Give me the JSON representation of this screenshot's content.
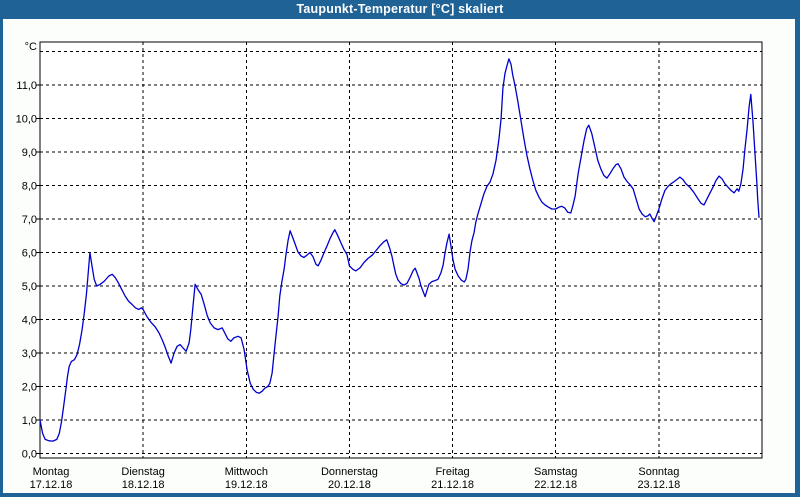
{
  "window": {
    "title": "Taupunkt-Temperatur [°C] skaliert"
  },
  "colors": {
    "frame_blue": "#1e6296",
    "background": "#fcfefc",
    "plot_background": "#ffffff",
    "grid_color": "#000000",
    "text_color": "#000000",
    "line_color": "#0000cd"
  },
  "chart_data": {
    "type": "line",
    "title": "Taupunkt-Temperatur [°C] skaliert",
    "y_unit_label": "°C",
    "grid": "dashed",
    "legend": "none",
    "y_axis": {
      "min": 0,
      "max_labeled": 11,
      "max_gridline": 12,
      "tick_step": 1,
      "tick_labels": [
        "0,0",
        "1,0",
        "2,0",
        "3,0",
        "4,0",
        "5,0",
        "6,0",
        "7,0",
        "8,0",
        "9,0",
        "10,0",
        "11,0"
      ],
      "decimal_separator": ","
    },
    "x_axis": {
      "hours_total": 168,
      "gridline_every_hours": 24,
      "days": [
        {
          "weekday": "Montag",
          "date": "17.12.18"
        },
        {
          "weekday": "Dienstag",
          "date": "18.12.18"
        },
        {
          "weekday": "Mittwoch",
          "date": "19.12.18"
        },
        {
          "weekday": "Donnerstag",
          "date": "20.12.18"
        },
        {
          "weekday": "Freitag",
          "date": "21.12.18"
        },
        {
          "weekday": "Samstag",
          "date": "22.12.18"
        },
        {
          "weekday": "Sonntag",
          "date": "23.12.18"
        }
      ]
    },
    "series": [
      {
        "name": "Taupunkt-Temperatur",
        "color": "#0000cd",
        "points": [
          [
            0,
            1.0
          ],
          [
            0.6,
            0.6
          ],
          [
            1.2,
            0.42
          ],
          [
            2.1,
            0.38
          ],
          [
            3,
            0.37
          ],
          [
            3.9,
            0.42
          ],
          [
            4.5,
            0.6
          ],
          [
            5,
            0.95
          ],
          [
            5.5,
            1.4
          ],
          [
            6,
            1.9
          ],
          [
            6.4,
            2.3
          ],
          [
            6.8,
            2.6
          ],
          [
            7.3,
            2.75
          ],
          [
            8,
            2.8
          ],
          [
            8.6,
            2.95
          ],
          [
            9.2,
            3.25
          ],
          [
            9.8,
            3.7
          ],
          [
            10.3,
            4.2
          ],
          [
            10.8,
            4.75
          ],
          [
            11.2,
            5.35
          ],
          [
            11.6,
            6.0
          ],
          [
            12.1,
            5.6
          ],
          [
            12.6,
            5.2
          ],
          [
            13.2,
            5.0
          ],
          [
            14,
            5.05
          ],
          [
            15,
            5.15
          ],
          [
            16,
            5.3
          ],
          [
            16.8,
            5.35
          ],
          [
            17.5,
            5.25
          ],
          [
            18.2,
            5.1
          ],
          [
            19,
            4.9
          ],
          [
            19.8,
            4.7
          ],
          [
            20.6,
            4.55
          ],
          [
            21.4,
            4.45
          ],
          [
            22.2,
            4.35
          ],
          [
            23,
            4.3
          ],
          [
            23.6,
            4.35
          ],
          [
            24,
            4.3
          ],
          [
            24.9,
            4.08
          ],
          [
            25.8,
            3.92
          ],
          [
            26.8,
            3.78
          ],
          [
            27.7,
            3.6
          ],
          [
            28.4,
            3.4
          ],
          [
            29.1,
            3.18
          ],
          [
            29.8,
            2.92
          ],
          [
            30.5,
            2.7
          ],
          [
            31.2,
            3.0
          ],
          [
            31.9,
            3.2
          ],
          [
            32.6,
            3.25
          ],
          [
            33.3,
            3.15
          ],
          [
            34,
            3.05
          ],
          [
            34.7,
            3.3
          ],
          [
            35.1,
            3.7
          ],
          [
            35.6,
            4.4
          ],
          [
            36.1,
            5.05
          ],
          [
            36.8,
            4.88
          ],
          [
            37.5,
            4.75
          ],
          [
            38.2,
            4.45
          ],
          [
            38.9,
            4.12
          ],
          [
            39.6,
            3.9
          ],
          [
            40.5,
            3.75
          ],
          [
            41.4,
            3.7
          ],
          [
            42.4,
            3.75
          ],
          [
            43,
            3.6
          ],
          [
            43.7,
            3.42
          ],
          [
            44.4,
            3.35
          ],
          [
            45.1,
            3.45
          ],
          [
            46.1,
            3.5
          ],
          [
            46.8,
            3.45
          ],
          [
            47.5,
            3.1
          ],
          [
            48.2,
            2.5
          ],
          [
            48.9,
            2.1
          ],
          [
            49.6,
            1.92
          ],
          [
            50.3,
            1.83
          ],
          [
            51,
            1.8
          ],
          [
            51.7,
            1.86
          ],
          [
            52.3,
            1.95
          ],
          [
            53,
            2.0
          ],
          [
            53.5,
            2.1
          ],
          [
            54,
            2.4
          ],
          [
            54.4,
            2.9
          ],
          [
            54.9,
            3.5
          ],
          [
            55.4,
            4.1
          ],
          [
            55.8,
            4.7
          ],
          [
            56.3,
            5.15
          ],
          [
            56.8,
            5.5
          ],
          [
            57.2,
            5.9
          ],
          [
            57.7,
            6.35
          ],
          [
            58.2,
            6.65
          ],
          [
            58.6,
            6.52
          ],
          [
            59.3,
            6.28
          ],
          [
            60,
            6.02
          ],
          [
            60.7,
            5.9
          ],
          [
            61.4,
            5.85
          ],
          [
            62.1,
            5.92
          ],
          [
            62.8,
            6.0
          ],
          [
            63.5,
            5.88
          ],
          [
            64.2,
            5.65
          ],
          [
            64.7,
            5.6
          ],
          [
            65.4,
            5.78
          ],
          [
            66.1,
            6.0
          ],
          [
            66.8,
            6.2
          ],
          [
            67.5,
            6.42
          ],
          [
            68.2,
            6.6
          ],
          [
            68.6,
            6.68
          ],
          [
            69.3,
            6.5
          ],
          [
            70,
            6.3
          ],
          [
            70.7,
            6.1
          ],
          [
            71.4,
            5.95
          ],
          [
            72,
            5.6
          ],
          [
            72.8,
            5.5
          ],
          [
            73.5,
            5.45
          ],
          [
            74.5,
            5.55
          ],
          [
            75.4,
            5.7
          ],
          [
            76.3,
            5.82
          ],
          [
            77.3,
            5.92
          ],
          [
            78.2,
            6.06
          ],
          [
            79.1,
            6.2
          ],
          [
            80,
            6.32
          ],
          [
            80.7,
            6.38
          ],
          [
            81.4,
            6.12
          ],
          [
            81.9,
            5.88
          ],
          [
            82.4,
            5.58
          ],
          [
            82.8,
            5.35
          ],
          [
            83.3,
            5.18
          ],
          [
            84,
            5.07
          ],
          [
            84.7,
            5.03
          ],
          [
            85.4,
            5.08
          ],
          [
            86.1,
            5.25
          ],
          [
            86.8,
            5.45
          ],
          [
            87.3,
            5.53
          ],
          [
            87.7,
            5.4
          ],
          [
            88.2,
            5.22
          ],
          [
            88.6,
            5.02
          ],
          [
            89.1,
            4.85
          ],
          [
            89.6,
            4.68
          ],
          [
            90,
            4.85
          ],
          [
            90.5,
            5.05
          ],
          [
            91.2,
            5.13
          ],
          [
            91.9,
            5.16
          ],
          [
            92.6,
            5.2
          ],
          [
            93.3,
            5.4
          ],
          [
            93.8,
            5.62
          ],
          [
            94.2,
            5.95
          ],
          [
            94.7,
            6.3
          ],
          [
            95.2,
            6.55
          ],
          [
            95.6,
            6.2
          ],
          [
            96.1,
            5.78
          ],
          [
            96.6,
            5.5
          ],
          [
            97.3,
            5.3
          ],
          [
            98,
            5.18
          ],
          [
            98.7,
            5.12
          ],
          [
            99.1,
            5.2
          ],
          [
            99.6,
            5.5
          ],
          [
            100.1,
            6.05
          ],
          [
            100.5,
            6.35
          ],
          [
            101,
            6.6
          ],
          [
            101.4,
            6.9
          ],
          [
            101.9,
            7.15
          ],
          [
            102.6,
            7.45
          ],
          [
            103.3,
            7.75
          ],
          [
            104,
            7.98
          ],
          [
            104.7,
            8.1
          ],
          [
            105.4,
            8.35
          ],
          [
            106.1,
            8.75
          ],
          [
            106.8,
            9.4
          ],
          [
            107.3,
            10.0
          ],
          [
            107.7,
            10.9
          ],
          [
            108.2,
            11.35
          ],
          [
            108.7,
            11.6
          ],
          [
            109.1,
            11.78
          ],
          [
            109.6,
            11.62
          ],
          [
            110,
            11.3
          ],
          [
            110.5,
            11.0
          ],
          [
            111.2,
            10.5
          ],
          [
            111.9,
            9.95
          ],
          [
            112.6,
            9.4
          ],
          [
            113.3,
            8.9
          ],
          [
            114,
            8.5
          ],
          [
            114.7,
            8.15
          ],
          [
            115.4,
            7.85
          ],
          [
            116.1,
            7.65
          ],
          [
            116.8,
            7.5
          ],
          [
            117.5,
            7.42
          ],
          [
            118.4,
            7.35
          ],
          [
            119.1,
            7.3
          ],
          [
            120,
            7.3
          ],
          [
            120.7,
            7.35
          ],
          [
            121.4,
            7.38
          ],
          [
            122.1,
            7.33
          ],
          [
            122.8,
            7.2
          ],
          [
            123.5,
            7.18
          ],
          [
            124,
            7.4
          ],
          [
            124.5,
            7.68
          ],
          [
            125.2,
            8.35
          ],
          [
            125.9,
            8.85
          ],
          [
            126.6,
            9.35
          ],
          [
            127.2,
            9.7
          ],
          [
            127.7,
            9.8
          ],
          [
            128.4,
            9.55
          ],
          [
            129.1,
            9.15
          ],
          [
            129.8,
            8.75
          ],
          [
            130.5,
            8.5
          ],
          [
            131.2,
            8.3
          ],
          [
            131.9,
            8.22
          ],
          [
            132.6,
            8.35
          ],
          [
            133.3,
            8.5
          ],
          [
            134,
            8.62
          ],
          [
            134.5,
            8.65
          ],
          [
            135.2,
            8.5
          ],
          [
            135.9,
            8.25
          ],
          [
            136.6,
            8.12
          ],
          [
            137.3,
            8.02
          ],
          [
            138,
            7.9
          ],
          [
            138.7,
            7.6
          ],
          [
            139.4,
            7.3
          ],
          [
            140.1,
            7.15
          ],
          [
            140.8,
            7.07
          ],
          [
            141.5,
            7.1
          ],
          [
            141.9,
            7.15
          ],
          [
            142.4,
            7.02
          ],
          [
            142.9,
            6.92
          ],
          [
            143.3,
            7.05
          ],
          [
            144,
            7.3
          ],
          [
            144.7,
            7.6
          ],
          [
            145.4,
            7.85
          ],
          [
            146.1,
            7.97
          ],
          [
            146.8,
            8.05
          ],
          [
            147.6,
            8.12
          ],
          [
            148.2,
            8.18
          ],
          [
            148.9,
            8.25
          ],
          [
            149.6,
            8.18
          ],
          [
            150.3,
            8.05
          ],
          [
            151.2,
            7.95
          ],
          [
            152.1,
            7.8
          ],
          [
            153.1,
            7.6
          ],
          [
            153.8,
            7.47
          ],
          [
            154.5,
            7.42
          ],
          [
            155.2,
            7.6
          ],
          [
            155.9,
            7.78
          ],
          [
            156.6,
            7.95
          ],
          [
            157.3,
            8.15
          ],
          [
            158,
            8.28
          ],
          [
            158.7,
            8.2
          ],
          [
            159.4,
            8.05
          ],
          [
            160.1,
            7.95
          ],
          [
            160.8,
            7.85
          ],
          [
            161.5,
            7.78
          ],
          [
            162.2,
            7.9
          ],
          [
            162.6,
            7.83
          ],
          [
            163.1,
            8.05
          ],
          [
            163.6,
            8.5
          ],
          [
            164,
            9.05
          ],
          [
            164.5,
            9.65
          ],
          [
            165,
            10.35
          ],
          [
            165.4,
            10.72
          ],
          [
            165.9,
            9.9
          ],
          [
            166.4,
            8.9
          ],
          [
            166.8,
            8.1
          ],
          [
            167,
            7.6
          ],
          [
            167.3,
            7.05
          ]
        ]
      }
    ]
  }
}
